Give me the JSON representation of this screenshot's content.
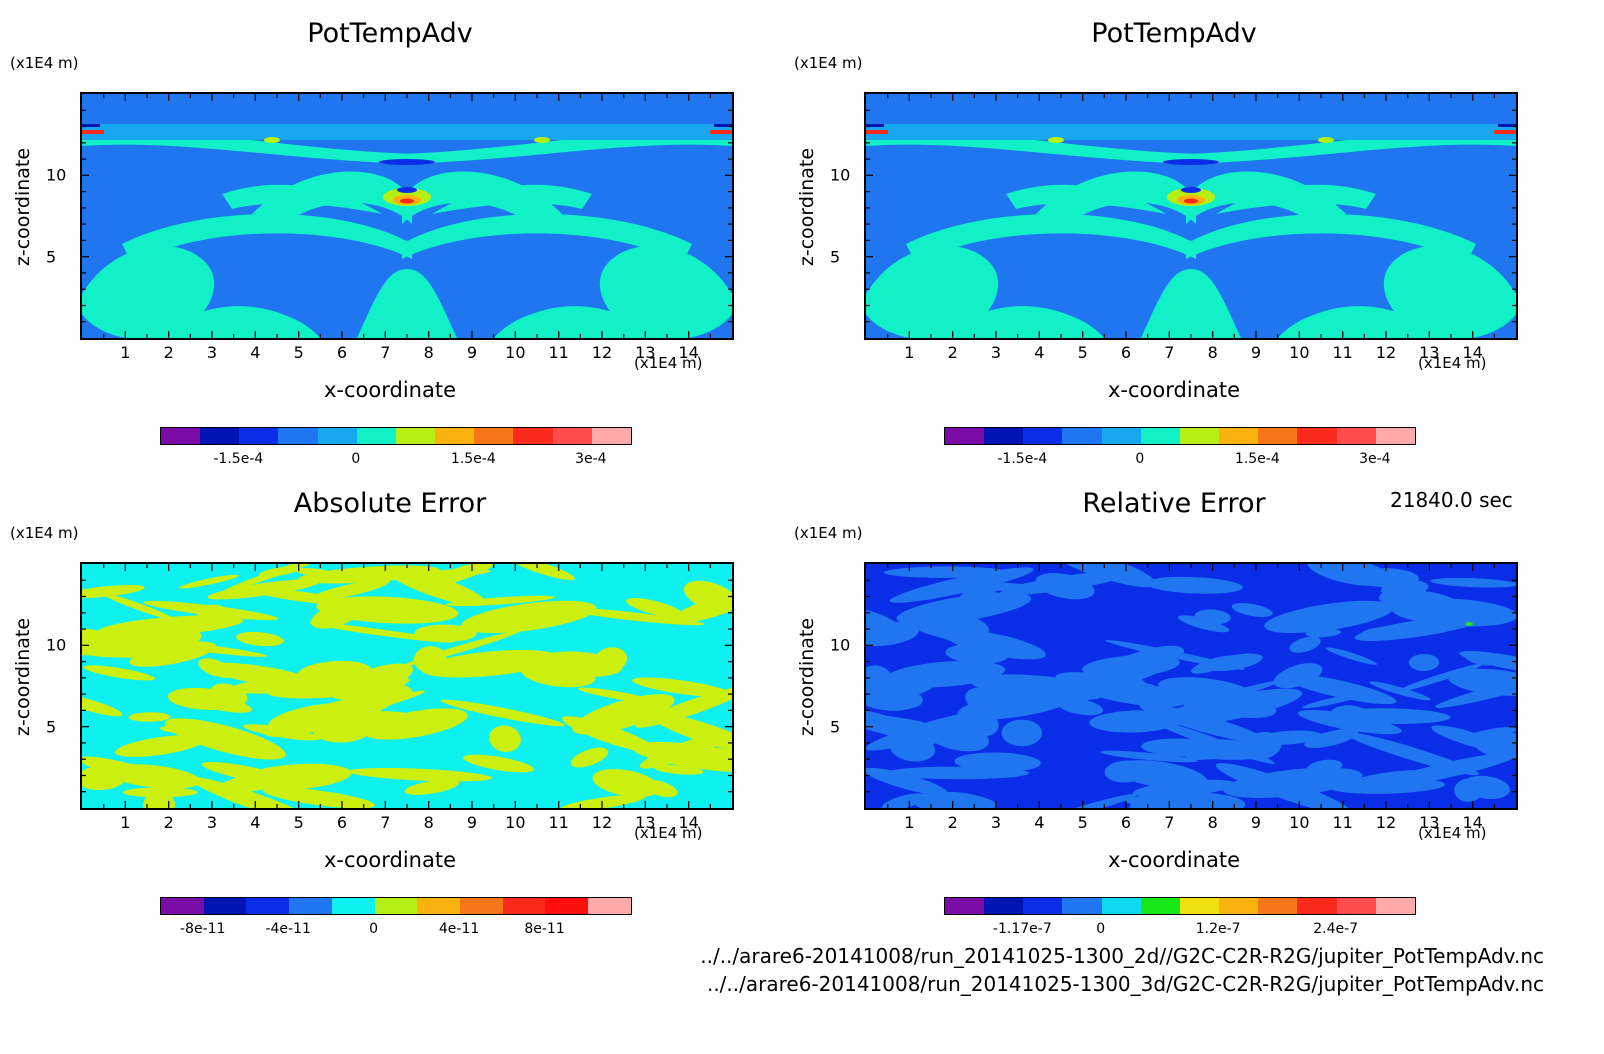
{
  "chart_data": [
    {
      "type": "heatmap",
      "title": "PotTempAdv",
      "xlabel": "x-coordinate",
      "ylabel": "z-coordinate",
      "x_unit": "(x1E4 m)",
      "z_unit": "(x1E4 m)",
      "xlim": [
        0,
        15
      ],
      "ylim": [
        0,
        15
      ],
      "xticks": [
        "1",
        "2",
        "3",
        "4",
        "5",
        "6",
        "7",
        "8",
        "9",
        "10",
        "11",
        "12",
        "13",
        "14"
      ],
      "yticks": [
        "5",
        "10"
      ],
      "colorbar": {
        "colors": [
          "#7b0ca5",
          "#0014b4",
          "#0a2ee8",
          "#1f76f0",
          "#19a8f0",
          "#11f0c6",
          "#b6ef16",
          "#f9b20e",
          "#f57718",
          "#fa2b1a",
          "#ff4d4d",
          "#ffaaaa"
        ],
        "labels": [
          "-1.5e-4",
          "0",
          "1.5e-4",
          "3e-4"
        ]
      },
      "dominant_colors": [
        "#1f76f0",
        "#11f0c6"
      ]
    },
    {
      "type": "heatmap",
      "title": "PotTempAdv",
      "xlabel": "x-coordinate",
      "ylabel": "z-coordinate",
      "x_unit": "(x1E4 m)",
      "z_unit": "(x1E4 m)",
      "xlim": [
        0,
        15
      ],
      "ylim": [
        0,
        15
      ],
      "xticks": [
        "1",
        "2",
        "3",
        "4",
        "5",
        "6",
        "7",
        "8",
        "9",
        "10",
        "11",
        "12",
        "13",
        "14"
      ],
      "yticks": [
        "5",
        "10"
      ],
      "colorbar": {
        "colors": [
          "#7b0ca5",
          "#0014b4",
          "#0a2ee8",
          "#1f76f0",
          "#19a8f0",
          "#11f0c6",
          "#b6ef16",
          "#f9b20e",
          "#f57718",
          "#fa2b1a",
          "#ff4d4d",
          "#ffaaaa"
        ],
        "labels": [
          "-1.5e-4",
          "0",
          "1.5e-4",
          "3e-4"
        ]
      },
      "dominant_colors": [
        "#1f76f0",
        "#11f0c6"
      ]
    },
    {
      "type": "heatmap",
      "title": "Absolute Error",
      "xlabel": "x-coordinate",
      "ylabel": "z-coordinate",
      "x_unit": "(x1E4 m)",
      "z_unit": "(x1E4 m)",
      "xlim": [
        0,
        15
      ],
      "ylim": [
        0,
        15
      ],
      "xticks": [
        "1",
        "2",
        "3",
        "4",
        "5",
        "6",
        "7",
        "8",
        "9",
        "10",
        "11",
        "12",
        "13",
        "14"
      ],
      "yticks": [
        "5",
        "10"
      ],
      "colorbar": {
        "colors": [
          "#7b0ca5",
          "#0014b4",
          "#0a2ee8",
          "#1f76f0",
          "#0ff0f0",
          "#b6ef16",
          "#f9b20e",
          "#f57718",
          "#fa2b1a",
          "#ff0e0e",
          "#ffaaaa"
        ],
        "labels": [
          "-8e-11",
          "-4e-11",
          "0",
          "4e-11",
          "8e-11"
        ]
      },
      "dominant_colors": [
        "#0ff0f0",
        "#cbf010"
      ]
    },
    {
      "type": "heatmap",
      "title": "Relative Error",
      "xlabel": "x-coordinate",
      "ylabel": "z-coordinate",
      "x_unit": "(x1E4 m)",
      "z_unit": "(x1E4 m)",
      "xlim": [
        0,
        15
      ],
      "ylim": [
        0,
        15
      ],
      "xticks": [
        "1",
        "2",
        "3",
        "4",
        "5",
        "6",
        "7",
        "8",
        "9",
        "10",
        "11",
        "12",
        "13",
        "14"
      ],
      "yticks": [
        "5",
        "10"
      ],
      "colorbar": {
        "colors": [
          "#7b0ca5",
          "#0014b4",
          "#0a2ee8",
          "#1f76f0",
          "#0fd8f0",
          "#18e81a",
          "#f0e010",
          "#f9b20e",
          "#f57718",
          "#fa2b1a",
          "#ff4d4d",
          "#ffaaaa"
        ],
        "labels": [
          "-1.17e-7",
          "0",
          "1.2e-7",
          "2.4e-7"
        ]
      },
      "dominant_colors": [
        "#0a2ee8",
        "#1f76f0"
      ]
    }
  ],
  "time_label": "21840.0 sec",
  "files": [
    "../../arare6-20141008/run_20141025-1300_2d//G2C-C2R-R2G/jupiter_PotTempAdv.nc",
    "../../arare6-20141008/run_20141025-1300_3d/G2C-C2R-R2G/jupiter_PotTempAdv.nc"
  ]
}
